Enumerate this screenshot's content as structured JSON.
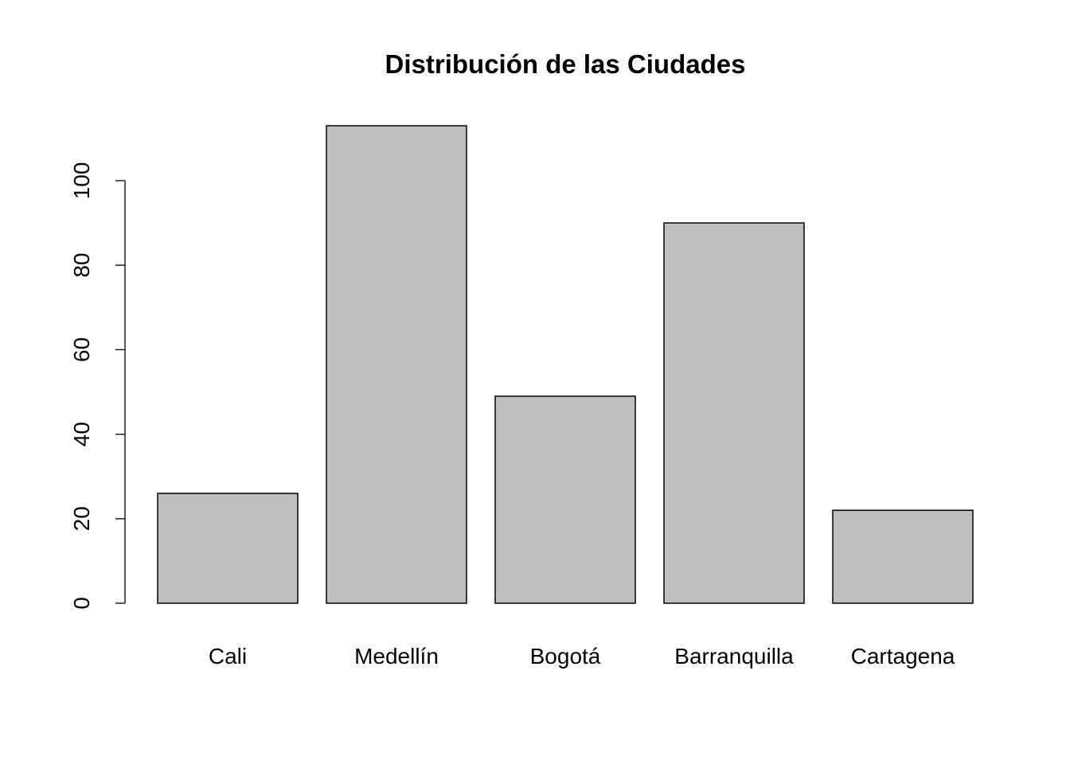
{
  "chart_data": {
    "type": "bar",
    "title": "Distribución de las Ciudades",
    "categories": [
      "Cali",
      "Medellín",
      "Bogotá",
      "Barranquilla",
      "Cartagena"
    ],
    "values": [
      26,
      113,
      49,
      90,
      22
    ],
    "color": "#bebebe",
    "ylim": [
      0,
      113
    ],
    "yticks": [
      0,
      20,
      40,
      60,
      80,
      100
    ]
  }
}
